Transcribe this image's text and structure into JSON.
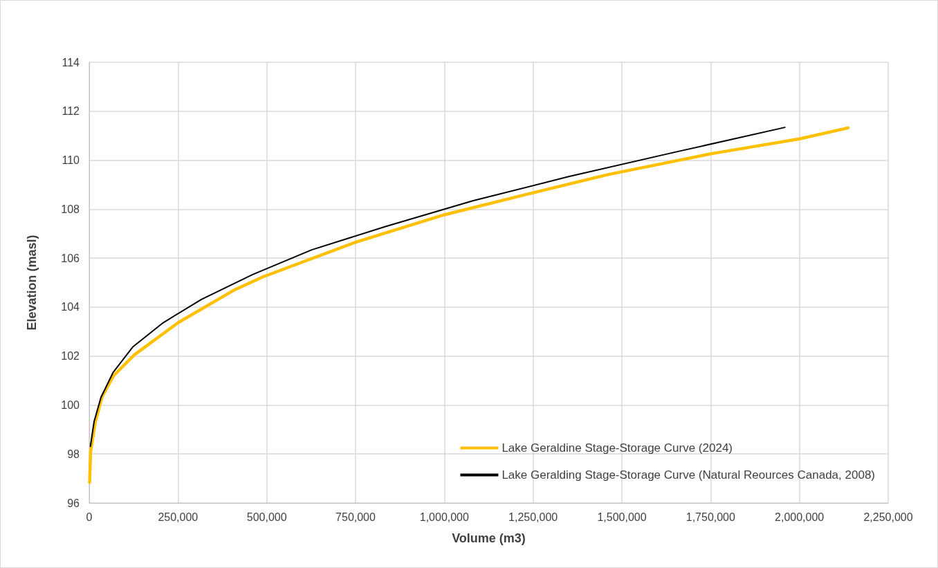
{
  "chart_data": {
    "type": "line",
    "xlabel": "Volume (m3)",
    "ylabel": "Elevation (masl)",
    "series": [
      {
        "name": "Lake Geraldine Stage-Storage Curve (2024)",
        "color": "#ffc000",
        "x": [
          1000,
          3900,
          16900,
          36300,
          68700,
          127000,
          250000,
          406000,
          490000,
          750000,
          1000000,
          1250000,
          1463000,
          1750000,
          2000000,
          2137000
        ],
        "values": [
          96.84,
          98.1,
          99.3,
          100.35,
          101.2,
          102.05,
          103.36,
          104.68,
          105.24,
          106.65,
          107.77,
          108.67,
          109.42,
          110.26,
          110.87,
          111.32
        ]
      },
      {
        "name": "Lake Geralding Stage-Storage Curve (Natural Reources Canada, 2008)",
        "color": "#000000",
        "x": [
          3300,
          13600,
          33000,
          67500,
          122500,
          208000,
          316500,
          460000,
          626500,
          834000,
          1080000,
          1350000,
          1650000,
          1959000
        ],
        "values": [
          98.31,
          99.32,
          100.31,
          101.34,
          102.37,
          103.36,
          104.32,
          105.33,
          106.34,
          107.29,
          108.34,
          109.33,
          110.33,
          111.34
        ]
      }
    ],
    "xlim": [
      0,
      2250000
    ],
    "xticks": [
      0,
      {
        "value": 250000,
        "label": "250,000"
      },
      {
        "value": 500000,
        "label": "500,000"
      },
      {
        "value": 750000,
        "label": "750,000"
      },
      {
        "value": 1000000,
        "label": "1,000,000"
      },
      {
        "value": 1250000,
        "label": "1,250,000"
      },
      {
        "value": 1500000,
        "label": "1,500,000"
      },
      {
        "value": 1750000,
        "label": "1,750,000"
      },
      {
        "value": 2000000,
        "label": "2,000,000"
      },
      {
        "value": 2250000,
        "label": "2,250,000"
      }
    ],
    "ylim": [
      96,
      114
    ],
    "yticks": [
      96,
      98,
      100,
      102,
      104,
      106,
      108,
      110,
      112,
      114
    ],
    "grid": true,
    "legend": "bottom right",
    "marker": "none",
    "line_style": "solid"
  }
}
